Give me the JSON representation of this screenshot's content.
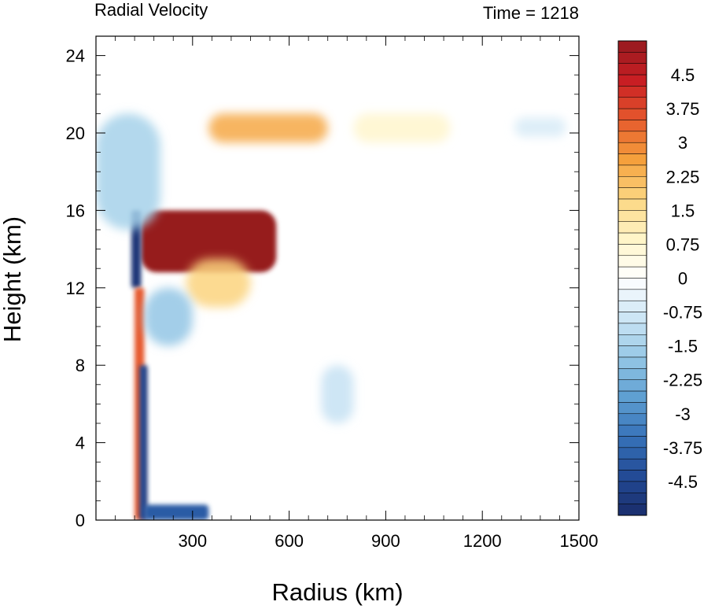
{
  "chart_data": {
    "type": "heatmap",
    "title": "Radial Velocity",
    "subtitle": "Time = 1218",
    "xlabel": "Radius (km)",
    "ylabel": "Height (km)",
    "xlim": [
      0,
      1500
    ],
    "ylim": [
      0,
      25
    ],
    "xticks": [
      300,
      600,
      900,
      1200,
      1500
    ],
    "xtick_labels": [
      "300",
      "600",
      "900",
      "1200",
      "1500"
    ],
    "yticks": [
      0,
      4,
      8,
      12,
      16,
      20,
      24
    ],
    "ytick_labels": [
      "0",
      "4",
      "8",
      "12",
      "16",
      "20",
      "24"
    ],
    "grid": false,
    "colorbar": {
      "levels": [
        -5.25,
        -5,
        -4.75,
        -4.5,
        -4.25,
        -4,
        -3.75,
        -3.5,
        -3.25,
        -3,
        -2.75,
        -2.5,
        -2.25,
        -2,
        -1.75,
        -1.5,
        -1.25,
        -1,
        -0.75,
        -0.5,
        -0.25,
        0,
        0.25,
        0.5,
        0.75,
        1,
        1.25,
        1.5,
        1.75,
        2,
        2.25,
        2.5,
        2.75,
        3,
        3.25,
        3.5,
        3.75,
        4,
        4.25,
        4.5,
        4.75,
        5,
        5.25
      ],
      "label_values": [
        4.5,
        3.75,
        3,
        2.25,
        1.5,
        0.75,
        0,
        -0.75,
        -1.5,
        -2.25,
        -3,
        -3.75,
        -4.5
      ],
      "labels": [
        "4.5",
        "3.75",
        "3",
        "2.25",
        "1.5",
        "0.75",
        "0",
        "-0.75",
        "-1.5",
        "-2.25",
        "-3",
        "-3.75",
        "-4.5"
      ],
      "min_color": "#1a2d6b",
      "mid_color": "#ffffff",
      "max_color": "#961a1f"
    },
    "features": [
      {
        "kind": "outflow",
        "x": [
          140,
          560
        ],
        "y": [
          12.8,
          16
        ],
        "value": 5.5
      },
      {
        "kind": "inflow",
        "x": [
          110,
          140
        ],
        "y": [
          12,
          16
        ],
        "value": -5.0
      },
      {
        "kind": "eyewall-outflow",
        "x": [
          120,
          150
        ],
        "y": [
          0,
          12
        ],
        "value": 3.5
      },
      {
        "kind": "eyewall-inflow",
        "x": [
          135,
          160
        ],
        "y": [
          0,
          8
        ],
        "value": -4.5
      },
      {
        "kind": "boundary-layer-inflow",
        "x": [
          150,
          350
        ],
        "y": [
          0,
          0.8
        ],
        "value": -4.0
      },
      {
        "kind": "upper-outflow",
        "x": [
          350,
          720
        ],
        "y": [
          19.5,
          21
        ],
        "value": 2.5
      },
      {
        "kind": "mid-outflow",
        "x": [
          280,
          480
        ],
        "y": [
          11,
          13.5
        ],
        "value": 1.8
      },
      {
        "kind": "upper-inflow",
        "x": [
          0,
          200
        ],
        "y": [
          15,
          21
        ],
        "value": -1.5
      },
      {
        "kind": "mid-inflow",
        "x": [
          150,
          300
        ],
        "y": [
          9,
          12
        ],
        "value": -1.8
      },
      {
        "kind": "weak-outflow",
        "x": [
          800,
          1100
        ],
        "y": [
          19.5,
          21
        ],
        "value": 0.8
      },
      {
        "kind": "weak-inflow",
        "x": [
          1300,
          1460
        ],
        "y": [
          19.8,
          20.8
        ],
        "value": -0.7
      },
      {
        "kind": "lower-inflow",
        "x": [
          700,
          800
        ],
        "y": [
          5,
          8
        ],
        "value": -1.0
      }
    ]
  }
}
